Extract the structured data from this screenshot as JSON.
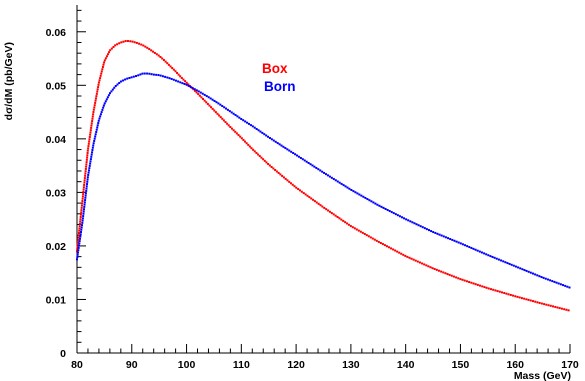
{
  "chart_data": {
    "type": "scatter",
    "xlabel": "Mass (GeV)",
    "ylabel": "dσ/dM (pb/GeV)",
    "xlim": [
      80,
      170
    ],
    "ylim": [
      0,
      0.065
    ],
    "x_ticks": [
      "80",
      "90",
      "100",
      "110",
      "120",
      "130",
      "140",
      "150",
      "160",
      "170"
    ],
    "y_ticks": [
      "0",
      "0.01",
      "0.02",
      "0.03",
      "0.04",
      "0.05",
      "0.06"
    ],
    "grid": false,
    "legend_placement": "upper-middle",
    "series": [
      {
        "name": "Box",
        "color": "#ff0000",
        "x": [
          80,
          81,
          82,
          83,
          84,
          85,
          86,
          87,
          88,
          89,
          90,
          91,
          92,
          93,
          94,
          95,
          96,
          97,
          98,
          99,
          100,
          102,
          104,
          106,
          108,
          110,
          112,
          115,
          118,
          120,
          125,
          130,
          135,
          140,
          145,
          150,
          155,
          160,
          165,
          170
        ],
        "y": [
          0.019,
          0.0285,
          0.038,
          0.045,
          0.0505,
          0.0545,
          0.0565,
          0.0575,
          0.058,
          0.0583,
          0.0582,
          0.0579,
          0.0575,
          0.0569,
          0.0562,
          0.0555,
          0.0546,
          0.0536,
          0.0526,
          0.0515,
          0.0505,
          0.0485,
          0.0464,
          0.0443,
          0.0422,
          0.0402,
          0.0381,
          0.0352,
          0.0326,
          0.0309,
          0.0272,
          0.0237,
          0.0208,
          0.0181,
          0.0158,
          0.0138,
          0.0121,
          0.0106,
          0.0092,
          0.0079
        ]
      },
      {
        "name": "Born",
        "color": "#0000ff",
        "x": [
          80,
          81,
          82,
          83,
          84,
          85,
          86,
          87,
          88,
          89,
          90,
          91,
          92,
          93,
          94,
          95,
          96,
          97,
          98,
          99,
          100,
          102,
          104,
          106,
          108,
          110,
          112,
          115,
          118,
          120,
          125,
          130,
          135,
          140,
          145,
          150,
          155,
          160,
          165,
          170
        ],
        "y": [
          0.0175,
          0.0245,
          0.033,
          0.039,
          0.0435,
          0.0465,
          0.0485,
          0.0498,
          0.0507,
          0.0512,
          0.0515,
          0.0518,
          0.0522,
          0.0522,
          0.052,
          0.0519,
          0.0516,
          0.0513,
          0.0509,
          0.0505,
          0.0501,
          0.049,
          0.0478,
          0.0465,
          0.0451,
          0.0437,
          0.0424,
          0.0403,
          0.0383,
          0.037,
          0.0337,
          0.0305,
          0.0276,
          0.025,
          0.0226,
          0.0205,
          0.0183,
          0.0162,
          0.0141,
          0.0122
        ]
      }
    ]
  }
}
